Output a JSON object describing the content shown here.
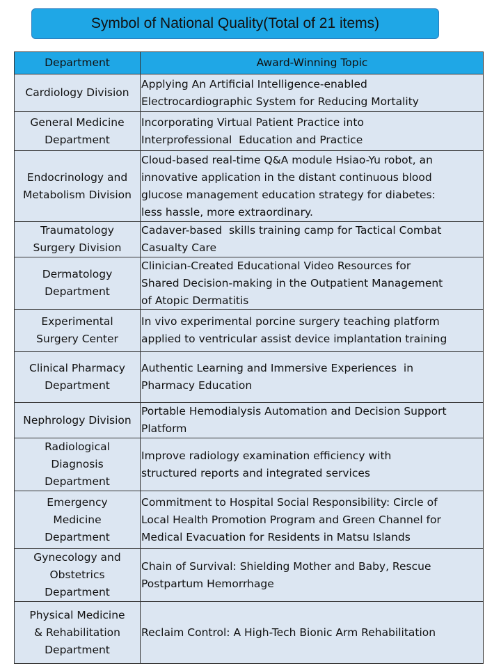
{
  "header": {
    "title": "Symbol of National Quality(Total of 21 items)"
  },
  "table": {
    "columns": [
      "Department",
      "Award-Winning Topic"
    ],
    "rows": [
      {
        "department": [
          "Cardiology Division"
        ],
        "topic": [
          "Applying An Artificial Intelligence-enabled",
          "Electrocardiographic System for Reducing Mortality"
        ]
      },
      {
        "department": [
          "General Medicine",
          "Department"
        ],
        "topic": [
          "Incorporating Virtual Patient Practice into",
          "Interprofessional  Education and Practice"
        ]
      },
      {
        "department": [
          "Endocrinology and",
          "Metabolism Division"
        ],
        "topic": [
          "Cloud-based real-time Q&A module Hsiao-Yu robot, an",
          "innovative application in the distant continuous blood",
          "glucose management education strategy for diabetes:",
          "less hassle, more extraordinary."
        ]
      },
      {
        "department": [
          "Traumatology",
          "Surgery Division"
        ],
        "topic": [
          "Cadaver-based  skills training camp for Tactical Combat",
          "Casualty Care"
        ]
      },
      {
        "department": [
          "Dermatology",
          "Department"
        ],
        "topic": [
          "Clinician-Created Educational Video Resources for",
          "Shared Decision-making in the Outpatient Management",
          "of Atopic Dermatitis"
        ]
      },
      {
        "department": [
          "Experimental",
          "Surgery Center"
        ],
        "topic": [
          "In vivo experimental porcine surgery teaching platform",
          "applied to ventricular assist device implantation training"
        ]
      },
      {
        "department": [
          "Clinical Pharmacy",
          "Department"
        ],
        "topic": [
          "Authentic Learning and Immersive Experiences  in",
          "Pharmacy Education"
        ]
      },
      {
        "department": [
          "Nephrology Division"
        ],
        "topic": [
          "Portable Hemodialysis Automation and Decision Support",
          "Platform"
        ]
      },
      {
        "department": [
          "Radiological",
          "Diagnosis",
          "Department"
        ],
        "topic": [
          "Improve radiology examination efficiency with",
          "structured reports and integrated services"
        ]
      },
      {
        "department": [
          "Emergency",
          "Medicine",
          "Department"
        ],
        "topic": [
          "Commitment to Hospital Social Responsibility: Circle of",
          "Local Health Promotion Program and Green Channel for",
          "Medical Evacuation for Residents in Matsu Islands"
        ]
      },
      {
        "department": [
          "Gynecology and",
          "Obstetrics",
          "Department"
        ],
        "topic": [
          "Chain of Survival: Shielding Mother and Baby, Rescue",
          "Postpartum Hemorrhage"
        ]
      },
      {
        "department": [
          "Physical Medicine",
          "& Rehabilitation",
          "Department"
        ],
        "topic": [
          "Reclaim Control: A High-Tech Bionic Arm Rehabilitation"
        ]
      }
    ]
  }
}
